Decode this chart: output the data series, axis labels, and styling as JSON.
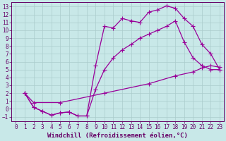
{
  "xlabel": "Windchill (Refroidissement éolien,°C)",
  "bg_color": "#c8e8e8",
  "line_color": "#990099",
  "grid_color": "#aacccc",
  "xlim": [
    -0.5,
    23.5
  ],
  "ylim": [
    -1.6,
    13.6
  ],
  "xticks": [
    0,
    1,
    2,
    3,
    4,
    5,
    6,
    7,
    8,
    9,
    10,
    11,
    12,
    13,
    14,
    15,
    16,
    17,
    18,
    19,
    20,
    21,
    22,
    23
  ],
  "yticks": [
    -1,
    0,
    1,
    2,
    3,
    4,
    5,
    6,
    7,
    8,
    9,
    10,
    11,
    12,
    13
  ],
  "line1_x": [
    1,
    2,
    3,
    4,
    5,
    6,
    7,
    8,
    9,
    10,
    11,
    12,
    13,
    14,
    15,
    16,
    17,
    18,
    19,
    20,
    21,
    22,
    23
  ],
  "line1_y": [
    2.0,
    0.2,
    -0.3,
    -0.8,
    -0.5,
    -0.4,
    -0.9,
    -0.9,
    5.5,
    10.5,
    10.3,
    11.5,
    11.2,
    11.0,
    12.3,
    12.6,
    13.1,
    12.8,
    11.5,
    10.5,
    8.2,
    7.0,
    5.0
  ],
  "line2_x": [
    1,
    2,
    3,
    4,
    5,
    6,
    7,
    8,
    9,
    10,
    11,
    12,
    13,
    14,
    15,
    16,
    17,
    18,
    19,
    20,
    21,
    22,
    23
  ],
  "line2_y": [
    2.0,
    0.2,
    -0.3,
    -0.8,
    -0.5,
    -0.4,
    -0.9,
    -0.9,
    2.5,
    5.0,
    6.5,
    7.5,
    8.2,
    9.0,
    9.5,
    10.0,
    10.5,
    11.2,
    8.5,
    6.5,
    5.5,
    5.0,
    5.0
  ],
  "line3_x": [
    1,
    2,
    5,
    10,
    15,
    18,
    20,
    21,
    22,
    23
  ],
  "line3_y": [
    2.0,
    0.8,
    0.8,
    2.0,
    3.2,
    4.2,
    4.7,
    5.2,
    5.5,
    5.3
  ],
  "marker": "+",
  "markersize": 4,
  "linewidth": 0.9,
  "font_color": "#660066",
  "tick_fontsize": 5.5,
  "xlabel_fontsize": 6.5
}
